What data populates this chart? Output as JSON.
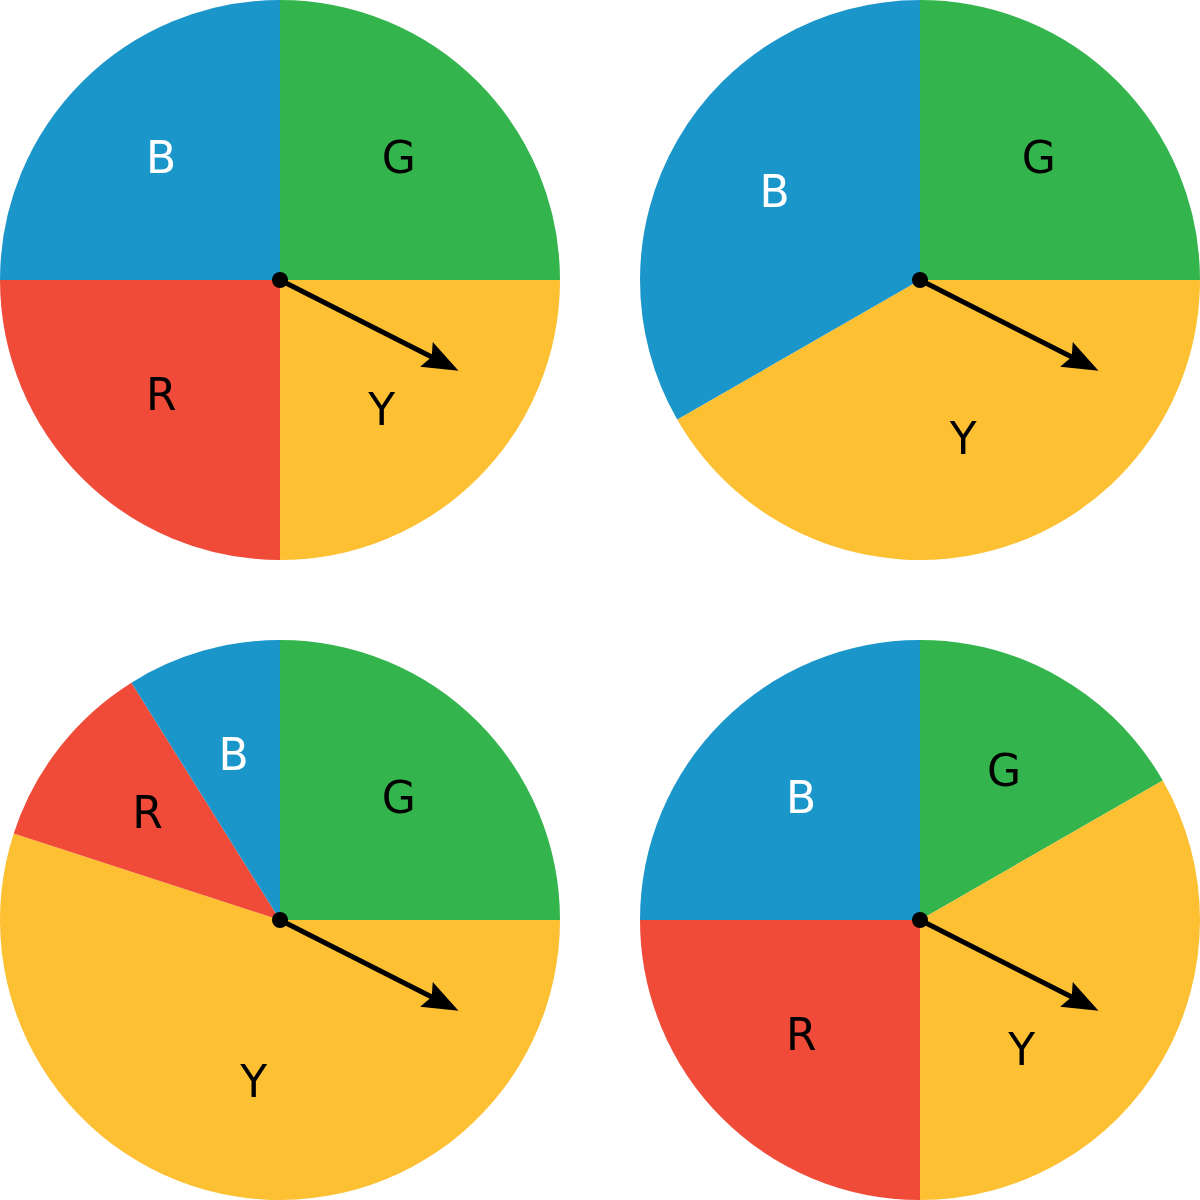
{
  "chart_data": [
    {
      "type": "pie",
      "categories": [
        "G",
        "Y",
        "R",
        "B"
      ],
      "values": [
        25,
        25,
        25,
        25
      ],
      "colors": [
        "#34b44c",
        "#fdc033",
        "#ef4b38",
        "#1b96cb"
      ],
      "needle": "Y"
    },
    {
      "type": "pie",
      "categories": [
        "G",
        "Y",
        "B"
      ],
      "values": [
        25,
        41.7,
        33.3
      ],
      "colors": [
        "#34b44c",
        "#fdc033",
        "#1b96cb"
      ],
      "needle": "Y"
    },
    {
      "type": "pie",
      "categories": [
        "G",
        "Y",
        "R",
        "B"
      ],
      "values": [
        25,
        55,
        11.1,
        8.9
      ],
      "colors": [
        "#34b44c",
        "#fdc033",
        "#ef4b38",
        "#1b96cb"
      ],
      "needle": "Y"
    },
    {
      "type": "pie",
      "categories": [
        "G",
        "Y",
        "R",
        "B"
      ],
      "values": [
        16.7,
        33.3,
        25,
        25
      ],
      "colors": [
        "#34b44c",
        "#fdc033",
        "#ef4b38",
        "#1b96cb"
      ],
      "needle": "Y"
    }
  ]
}
